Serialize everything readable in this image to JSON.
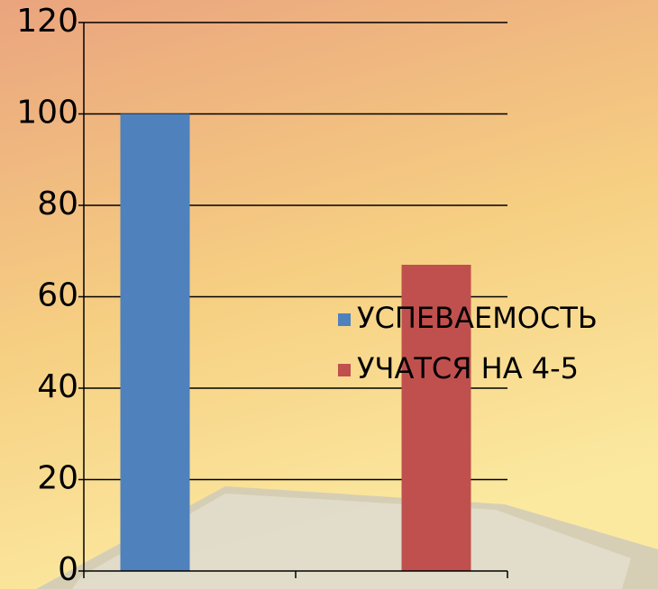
{
  "chart_data": {
    "type": "bar",
    "categories": [
      null,
      null
    ],
    "series": [
      {
        "name": "УСПЕВАЕМОСТЬ",
        "color": "#4f81bd",
        "values": [
          100,
          null
        ]
      },
      {
        "name": "УЧАТСЯ НА 4-5",
        "color": "#c0504d",
        "values": [
          null,
          67
        ]
      }
    ],
    "ylim": [
      0,
      120
    ],
    "yticks": [
      0,
      20,
      40,
      60,
      80,
      100,
      120
    ],
    "grid": true,
    "legend": "right"
  }
}
